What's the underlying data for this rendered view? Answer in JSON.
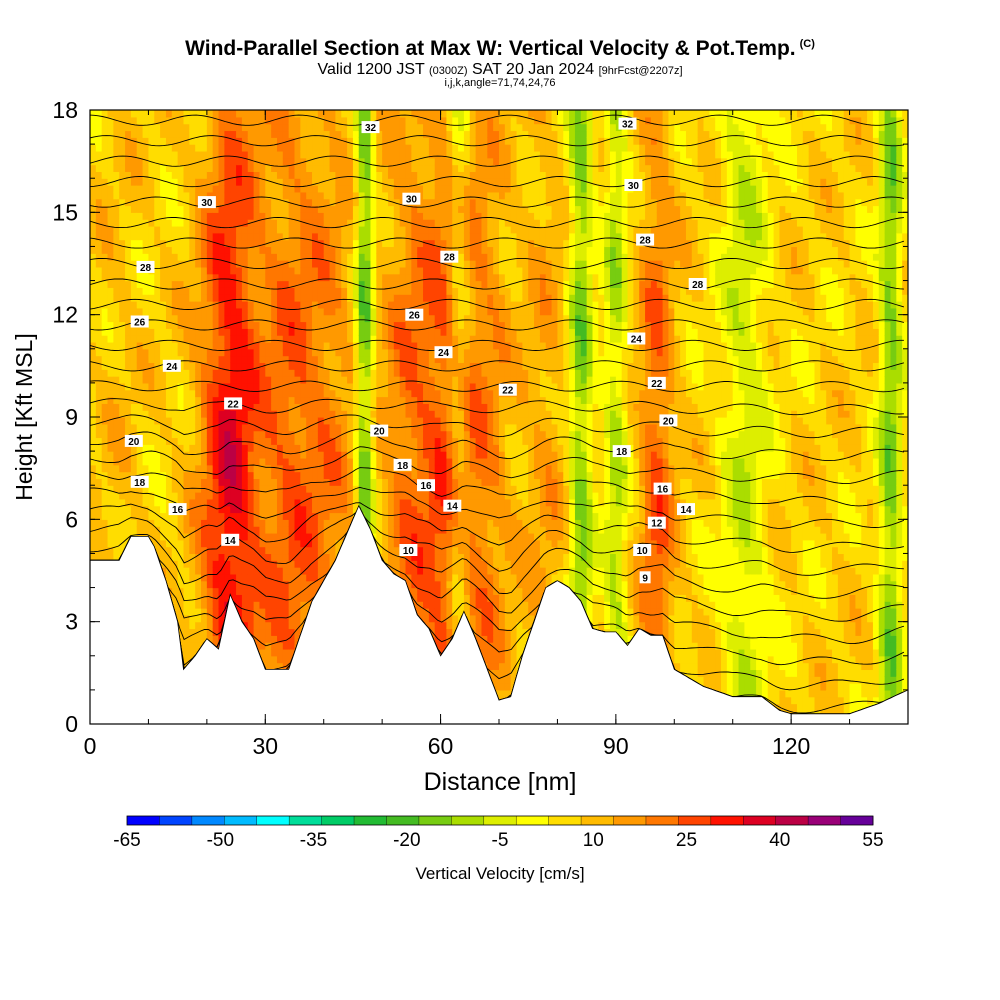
{
  "chart_data": {
    "type": "heatmap",
    "title": "Wind-Parallel Section at Max W: Vertical Velocity & Pot.Temp.",
    "title_mark": "(C)",
    "subtitle_main": "Valid 1200 JST",
    "subtitle_utc": "(0300Z)",
    "subtitle_date": "SAT 20 Jan 2024",
    "subtitle_fcst": "[9hrFcst@2207z]",
    "subsubtitle": "i,j,k,angle=71,74,24,76",
    "xlabel": "Distance [nm]",
    "ylabel": "Height [Kft MSL]",
    "xlim": [
      0,
      140
    ],
    "ylim": [
      0,
      18
    ],
    "x_ticks": [
      "0",
      "30",
      "60",
      "90",
      "120"
    ],
    "y_ticks": [
      "0",
      "3",
      "6",
      "9",
      "12",
      "15",
      "18"
    ],
    "colorbar": {
      "label": "Vertical Velocity [cm/s]",
      "tick_labels": [
        "-65",
        "-50",
        "-35",
        "-20",
        "-5",
        "10",
        "25",
        "40",
        "55"
      ],
      "tick_values": [
        -65,
        -50,
        -35,
        -20,
        -5,
        10,
        25,
        40,
        55
      ],
      "colors": [
        "#0000ff",
        "#0044ff",
        "#0088ff",
        "#00bbff",
        "#00ffff",
        "#00dd99",
        "#00cc66",
        "#22bb33",
        "#44bb22",
        "#77cc11",
        "#aadd00",
        "#ddee00",
        "#ffff00",
        "#ffdd00",
        "#ffbb00",
        "#ff9900",
        "#ff7700",
        "#ff4400",
        "#ff1100",
        "#dd0022",
        "#bb0044",
        "#990077",
        "#660099"
      ]
    },
    "terrain_height": {
      "x": [
        0,
        3,
        5,
        7,
        10,
        11,
        13,
        15,
        16,
        18,
        20,
        22,
        24,
        26,
        28,
        30,
        32,
        34,
        36,
        38,
        40,
        42,
        44,
        46,
        48,
        50,
        52,
        54,
        56,
        58,
        60,
        62,
        64,
        66,
        68,
        70,
        72,
        74,
        76,
        78,
        80,
        82,
        84,
        86,
        88,
        90,
        92,
        94,
        96,
        98,
        100,
        105,
        110,
        115,
        118,
        120,
        125,
        130,
        135,
        140
      ],
      "y": [
        4.8,
        4.8,
        4.8,
        5.5,
        5.5,
        5.2,
        4.2,
        3.0,
        1.6,
        2.0,
        2.5,
        2.2,
        3.8,
        3.0,
        2.5,
        1.6,
        1.6,
        1.6,
        2.6,
        3.6,
        4.2,
        4.8,
        5.6,
        6.4,
        5.7,
        4.8,
        4.4,
        4.2,
        3.2,
        2.8,
        2.0,
        2.5,
        3.3,
        2.5,
        1.6,
        0.7,
        0.8,
        2.0,
        3.0,
        4.0,
        4.2,
        4.0,
        3.6,
        2.8,
        2.7,
        2.7,
        2.3,
        2.8,
        2.6,
        2.6,
        1.6,
        1.1,
        0.8,
        0.8,
        0.4,
        0.3,
        0.3,
        0.3,
        0.6,
        1.0
      ]
    },
    "theta_contour_labels": [
      {
        "value": "32",
        "x": 48.0,
        "y": 17.5
      },
      {
        "value": "32",
        "x": 92.0,
        "y": 17.6
      },
      {
        "value": "30",
        "x": 20.0,
        "y": 15.3
      },
      {
        "value": "30",
        "x": 55.0,
        "y": 15.4
      },
      {
        "value": "30",
        "x": 93.0,
        "y": 15.8
      },
      {
        "value": "28",
        "x": 9.5,
        "y": 13.4
      },
      {
        "value": "28",
        "x": 61.5,
        "y": 13.7
      },
      {
        "value": "28",
        "x": 95.0,
        "y": 14.2
      },
      {
        "value": "28",
        "x": 104.0,
        "y": 12.9
      },
      {
        "value": "26",
        "x": 8.5,
        "y": 11.8
      },
      {
        "value": "26",
        "x": 55.5,
        "y": 12.0
      },
      {
        "value": "24",
        "x": 14.0,
        "y": 10.5
      },
      {
        "value": "24",
        "x": 60.5,
        "y": 10.9
      },
      {
        "value": "24",
        "x": 93.5,
        "y": 11.3
      },
      {
        "value": "22",
        "x": 24.5,
        "y": 9.4
      },
      {
        "value": "22",
        "x": 71.5,
        "y": 9.8
      },
      {
        "value": "22",
        "x": 97.0,
        "y": 10.0
      },
      {
        "value": "20",
        "x": 7.5,
        "y": 8.3
      },
      {
        "value": "20",
        "x": 49.5,
        "y": 8.6
      },
      {
        "value": "20",
        "x": 99.0,
        "y": 8.9
      },
      {
        "value": "18",
        "x": 8.5,
        "y": 7.1
      },
      {
        "value": "18",
        "x": 53.5,
        "y": 7.6
      },
      {
        "value": "18",
        "x": 91.0,
        "y": 8.0
      },
      {
        "value": "16",
        "x": 15.0,
        "y": 6.3
      },
      {
        "value": "16",
        "x": 57.5,
        "y": 7.0
      },
      {
        "value": "16",
        "x": 98.0,
        "y": 6.9
      },
      {
        "value": "14",
        "x": 24.0,
        "y": 5.4
      },
      {
        "value": "14",
        "x": 62.0,
        "y": 6.4
      },
      {
        "value": "14",
        "x": 102.0,
        "y": 6.3
      },
      {
        "value": "12",
        "x": 97.0,
        "y": 5.9
      },
      {
        "value": "10",
        "x": 54.5,
        "y": 5.1
      },
      {
        "value": "10",
        "x": 94.5,
        "y": 5.1
      },
      {
        "value": "9",
        "x": 95.0,
        "y": 4.3
      }
    ],
    "vertical_velocity_features": [
      {
        "x": 24,
        "width": 5,
        "value": 35
      },
      {
        "x": 34,
        "width": 5,
        "value": 22
      },
      {
        "x": 41,
        "width": 5,
        "value": 18
      },
      {
        "x": 55,
        "width": 5,
        "value": 22
      },
      {
        "x": 62,
        "width": 4,
        "value": 26
      },
      {
        "x": 68,
        "width": 4,
        "value": 18
      },
      {
        "x": 78,
        "width": 4,
        "value": 14
      },
      {
        "x": 97,
        "width": 3,
        "value": 24
      },
      {
        "x": 5,
        "width": 4,
        "value": 10
      },
      {
        "x": 47,
        "width": 1.5,
        "value": -18
      },
      {
        "x": 63,
        "width": 2,
        "value": -8
      },
      {
        "x": 84,
        "width": 2,
        "value": -14
      },
      {
        "x": 90,
        "width": 2,
        "value": -8
      },
      {
        "x": 112,
        "width": 4,
        "value": -6
      },
      {
        "x": 137,
        "width": 2,
        "value": -14
      }
    ]
  }
}
